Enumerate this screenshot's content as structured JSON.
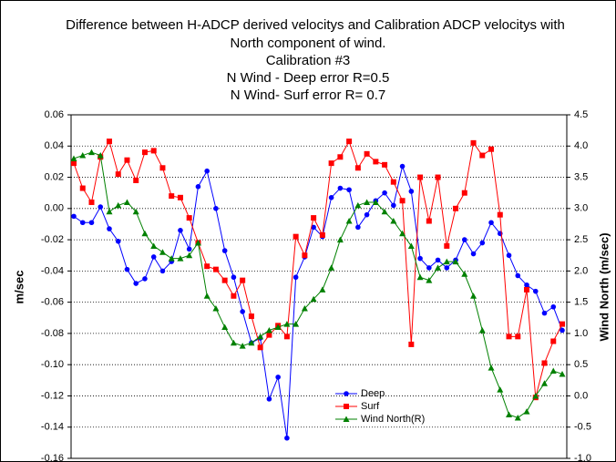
{
  "chart_data": {
    "type": "line",
    "title": [
      "Difference between H-ADCP derived velocitys and Calibration ADCP velocitys with",
      "North component of wind.",
      "Calibration #3",
      "N Wind - Deep error  R=0.5",
      "N Wind- Surf error R= 0.7"
    ],
    "y_label": "m/sec",
    "y2_label": "Wind North (m/sec)",
    "ylim": [
      -0.16,
      0.06
    ],
    "yticks": [
      0.06,
      0.04,
      0.02,
      {
        "value": 0,
        "label": "0.00"
      },
      -0.02,
      -0.04,
      -0.06,
      -0.08,
      {
        "value": -0.1,
        "label": "-0.10"
      },
      -0.12,
      -0.14,
      -0.16
    ],
    "y2lim": [
      -1,
      4.5
    ],
    "y2ticks": [
      4.5,
      {
        "value": 4,
        "label": "4.0"
      },
      3.5,
      {
        "value": 3,
        "label": "3.0"
      },
      2.5,
      {
        "value": 2,
        "label": "2.0"
      },
      1.5,
      {
        "value": 1,
        "label": "1.0"
      },
      0.5,
      {
        "value": 0,
        "label": "0.0"
      },
      -0.5,
      {
        "value": -1,
        "label": "-1.0"
      }
    ],
    "grid": true,
    "legend": "bottom",
    "series": [
      {
        "name": "Deep",
        "color": "#0000ff",
        "marker": "circle",
        "values": [
          -0.005,
          -0.009,
          -0.009,
          0.001,
          -0.013,
          -0.021,
          -0.039,
          -0.048,
          -0.045,
          -0.031,
          -0.04,
          -0.034,
          -0.014,
          -0.026,
          0.014,
          0.024,
          0.0,
          -0.027,
          -0.044,
          -0.066,
          -0.086,
          -0.083,
          -0.122,
          -0.108,
          -0.147,
          -0.044,
          -0.031,
          -0.012,
          -0.018,
          0.007,
          0.013,
          0.012,
          -0.012,
          -0.004,
          0.005,
          0.01,
          0.002,
          0.027,
          0.011,
          -0.032,
          -0.038,
          -0.033,
          -0.038,
          -0.033,
          -0.02,
          -0.029,
          -0.022,
          -0.009,
          -0.016,
          -0.03,
          -0.043,
          -0.049,
          -0.053,
          -0.067,
          -0.063,
          -0.078
        ]
      },
      {
        "name": "Surf",
        "color": "#ff0000",
        "marker": "square",
        "values": [
          0.029,
          0.013,
          0.004,
          0.033,
          0.043,
          0.022,
          0.031,
          0.018,
          0.036,
          0.037,
          0.026,
          0.008,
          0.007,
          -0.006,
          -0.022,
          -0.037,
          -0.039,
          -0.046,
          -0.056,
          -0.046,
          -0.069,
          -0.089,
          -0.081,
          -0.075,
          -0.082,
          -0.018,
          -0.03,
          -0.006,
          -0.017,
          0.029,
          0.033,
          0.043,
          0.026,
          0.035,
          0.03,
          0.028,
          0.017,
          0.005,
          -0.087,
          0.02,
          -0.008,
          0.02,
          -0.024,
          0.0,
          0.01,
          0.042,
          0.034,
          0.038,
          -0.004,
          -0.082,
          -0.082,
          -0.052,
          -0.121,
          -0.099,
          -0.085,
          -0.074
        ]
      },
      {
        "name": "Wind North(R)",
        "color": "#008000",
        "marker": "triangle",
        "axis": "y2",
        "values": [
          3.8,
          3.85,
          3.9,
          3.85,
          2.95,
          3.05,
          3.1,
          2.95,
          2.6,
          2.4,
          2.3,
          2.2,
          2.2,
          2.25,
          2.45,
          1.6,
          1.4,
          1.1,
          0.85,
          0.8,
          0.85,
          0.95,
          1.05,
          1.1,
          1.15,
          1.15,
          1.4,
          1.55,
          1.7,
          2.05,
          2.5,
          2.8,
          3.05,
          3.1,
          3.1,
          2.95,
          2.8,
          2.6,
          2.4,
          1.9,
          1.85,
          2.05,
          2.15,
          2.15,
          1.95,
          1.6,
          1.05,
          0.45,
          0.1,
          -0.3,
          -0.35,
          -0.25,
          0.0,
          0.2,
          0.4,
          0.35
        ]
      }
    ]
  }
}
